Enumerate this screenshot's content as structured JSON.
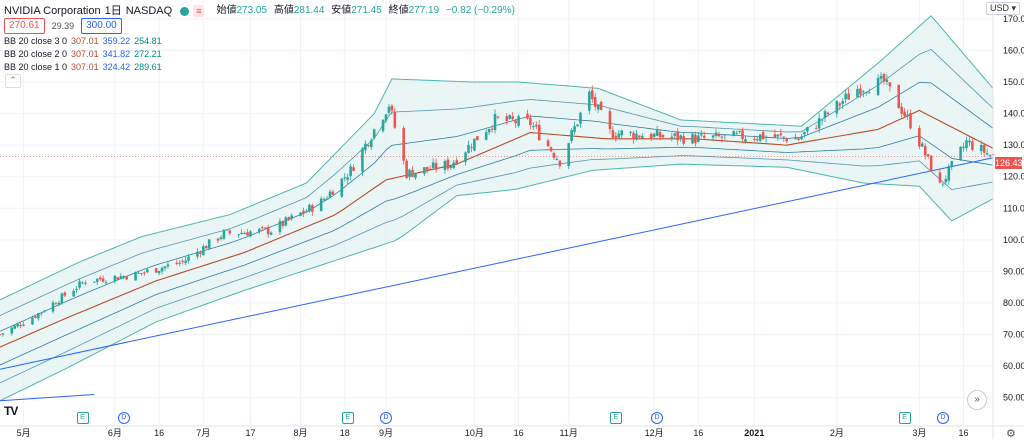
{
  "header": {
    "symbol": "NVIDIA Corporation",
    "interval": "1日",
    "exchange": "NASDAQ",
    "open_label": "始値",
    "open": "273.05",
    "high_label": "高値",
    "high": "281.44",
    "low_label": "安値",
    "low": "271.45",
    "close_label": "終値",
    "close": "277.19",
    "change": "−0.82 (−0.29%)"
  },
  "prices": {
    "sell": "270.61",
    "spread": "29.39",
    "buy": "300.00"
  },
  "indicators": [
    {
      "name": "BB 20 close 3 0",
      "mid": "307.01",
      "upper": "359.22",
      "lower": "254.81"
    },
    {
      "name": "BB 20 close 2 0",
      "mid": "307.01",
      "upper": "341.82",
      "lower": "272.21"
    },
    {
      "name": "BB 20 close 1 0",
      "mid": "307.01",
      "upper": "324.42",
      "lower": "289.61"
    }
  ],
  "currency": "USD",
  "last_price": "126.43",
  "events": [
    {
      "type": "E",
      "date": "2020-05-21"
    },
    {
      "type": "D",
      "date": "2020-06-04"
    },
    {
      "type": "E",
      "date": "2020-08-19"
    },
    {
      "type": "D",
      "date": "2020-09-01"
    },
    {
      "type": "E",
      "date": "2020-11-18"
    },
    {
      "type": "D",
      "date": "2020-12-02"
    },
    {
      "type": "E",
      "date": "2021-02-24"
    },
    {
      "type": "D",
      "date": "2021-03-09"
    }
  ],
  "goto_icon": "»",
  "settings_icon": "⚙",
  "logo_text": "TV",
  "colors": {
    "up": "#26a69a",
    "down": "#ef5350",
    "basis": "#b84a28",
    "band1": "#2e7d9c",
    "band_outer": "#4db6ac",
    "fill": "#e0f2f1",
    "trend": "#2962ff"
  },
  "chart_data": {
    "type": "candlestick",
    "yaxis_ticks": [
      50,
      60,
      70,
      80,
      90,
      100,
      110,
      120,
      130,
      140,
      150,
      160,
      170
    ],
    "ylim": [
      41,
      176
    ],
    "xaxis": {
      "start": "2020-04-23",
      "end": "2021-03-26",
      "ticks": [
        {
          "label": "5月",
          "date": "2020-05-01"
        },
        {
          "label": "6月",
          "date": "2020-06-01"
        },
        {
          "label": "16",
          "date": "2020-06-16"
        },
        {
          "label": "7月",
          "date": "2020-07-01"
        },
        {
          "label": "17",
          "date": "2020-07-17"
        },
        {
          "label": "8月",
          "date": "2020-08-03"
        },
        {
          "label": "18",
          "date": "2020-08-18"
        },
        {
          "label": "9月",
          "date": "2020-09-01"
        },
        {
          "label": "10月",
          "date": "2020-10-01"
        },
        {
          "label": "16",
          "date": "2020-10-16"
        },
        {
          "label": "11月",
          "date": "2020-11-02"
        },
        {
          "label": "12月",
          "date": "2020-12-01"
        },
        {
          "label": "16",
          "date": "2020-12-16"
        },
        {
          "label": "2021",
          "date": "2021-01-04"
        },
        {
          "label": "2月",
          "date": "2021-02-01"
        },
        {
          "label": "3月",
          "date": "2021-03-01"
        },
        {
          "label": "16",
          "date": "2021-03-16"
        }
      ]
    },
    "close_keypoints": [
      {
        "date": "2020-04-23",
        "close": 70
      },
      {
        "date": "2020-05-05",
        "close": 76
      },
      {
        "date": "2020-05-22",
        "close": 87
      },
      {
        "date": "2020-06-08",
        "close": 89
      },
      {
        "date": "2020-06-24",
        "close": 93
      },
      {
        "date": "2020-07-08",
        "close": 102
      },
      {
        "date": "2020-07-24",
        "close": 103
      },
      {
        "date": "2020-08-10",
        "close": 112
      },
      {
        "date": "2020-08-20",
        "close": 122
      },
      {
        "date": "2020-09-02",
        "close": 143
      },
      {
        "date": "2020-09-08",
        "close": 121
      },
      {
        "date": "2020-09-23",
        "close": 124
      },
      {
        "date": "2020-10-08",
        "close": 138
      },
      {
        "date": "2020-10-20",
        "close": 137
      },
      {
        "date": "2020-10-30",
        "close": 125
      },
      {
        "date": "2020-11-09",
        "close": 146
      },
      {
        "date": "2020-11-16",
        "close": 134
      },
      {
        "date": "2020-12-01",
        "close": 133
      },
      {
        "date": "2020-12-16",
        "close": 132
      },
      {
        "date": "2021-01-05",
        "close": 133
      },
      {
        "date": "2021-01-19",
        "close": 132
      },
      {
        "date": "2021-02-08",
        "close": 148
      },
      {
        "date": "2021-02-17",
        "close": 150
      },
      {
        "date": "2021-02-26",
        "close": 137
      },
      {
        "date": "2021-03-08",
        "close": 117
      },
      {
        "date": "2021-03-17",
        "close": 131
      },
      {
        "date": "2021-03-26",
        "close": 126.43
      }
    ],
    "bands": {
      "basis": [
        {
          "date": "2020-04-23",
          "v": 66
        },
        {
          "date": "2020-05-15",
          "v": 75
        },
        {
          "date": "2020-06-15",
          "v": 87
        },
        {
          "date": "2020-07-15",
          "v": 96
        },
        {
          "date": "2020-08-15",
          "v": 108
        },
        {
          "date": "2020-09-01",
          "v": 119
        },
        {
          "date": "2020-09-25",
          "v": 124
        },
        {
          "date": "2020-10-20",
          "v": 134
        },
        {
          "date": "2020-11-15",
          "v": 132
        },
        {
          "date": "2020-12-15",
          "v": 132
        },
        {
          "date": "2021-01-15",
          "v": 130
        },
        {
          "date": "2021-02-15",
          "v": 135
        },
        {
          "date": "2021-03-01",
          "v": 141
        },
        {
          "date": "2021-03-26",
          "v": 129
        }
      ],
      "outer_upper": [
        {
          "date": "2020-04-23",
          "v": 81
        },
        {
          "date": "2020-05-20",
          "v": 93
        },
        {
          "date": "2020-06-10",
          "v": 101
        },
        {
          "date": "2020-07-10",
          "v": 108
        },
        {
          "date": "2020-08-05",
          "v": 118
        },
        {
          "date": "2020-08-28",
          "v": 140
        },
        {
          "date": "2020-09-03",
          "v": 151
        },
        {
          "date": "2020-09-30",
          "v": 150
        },
        {
          "date": "2020-10-16",
          "v": 150
        },
        {
          "date": "2020-11-12",
          "v": 148
        },
        {
          "date": "2020-12-10",
          "v": 138
        },
        {
          "date": "2021-01-20",
          "v": 136
        },
        {
          "date": "2021-02-15",
          "v": 156
        },
        {
          "date": "2021-03-05",
          "v": 171
        },
        {
          "date": "2021-03-26",
          "v": 148
        }
      ],
      "outer_lower": [
        {
          "date": "2020-04-23",
          "v": 49
        },
        {
          "date": "2020-05-15",
          "v": 59
        },
        {
          "date": "2020-06-15",
          "v": 74
        },
        {
          "date": "2020-07-15",
          "v": 84
        },
        {
          "date": "2020-08-10",
          "v": 92
        },
        {
          "date": "2020-09-05",
          "v": 100
        },
        {
          "date": "2020-09-25",
          "v": 114
        },
        {
          "date": "2020-10-15",
          "v": 116
        },
        {
          "date": "2020-11-10",
          "v": 122
        },
        {
          "date": "2020-12-10",
          "v": 124
        },
        {
          "date": "2021-01-15",
          "v": 123
        },
        {
          "date": "2021-02-10",
          "v": 118
        },
        {
          "date": "2021-03-01",
          "v": 117
        },
        {
          "date": "2021-03-12",
          "v": 106
        },
        {
          "date": "2021-03-26",
          "v": 113
        }
      ]
    },
    "trendlines": [
      {
        "from": {
          "date": "2020-04-23",
          "v": 59
        },
        "to": {
          "date": "2021-03-26",
          "v": 126
        }
      },
      {
        "from": {
          "date": "2020-04-23",
          "v": 49
        },
        "to": {
          "date": "2020-05-25",
          "v": 51
        }
      }
    ],
    "log_scale": false,
    "grid": true,
    "legend": "top-left"
  }
}
